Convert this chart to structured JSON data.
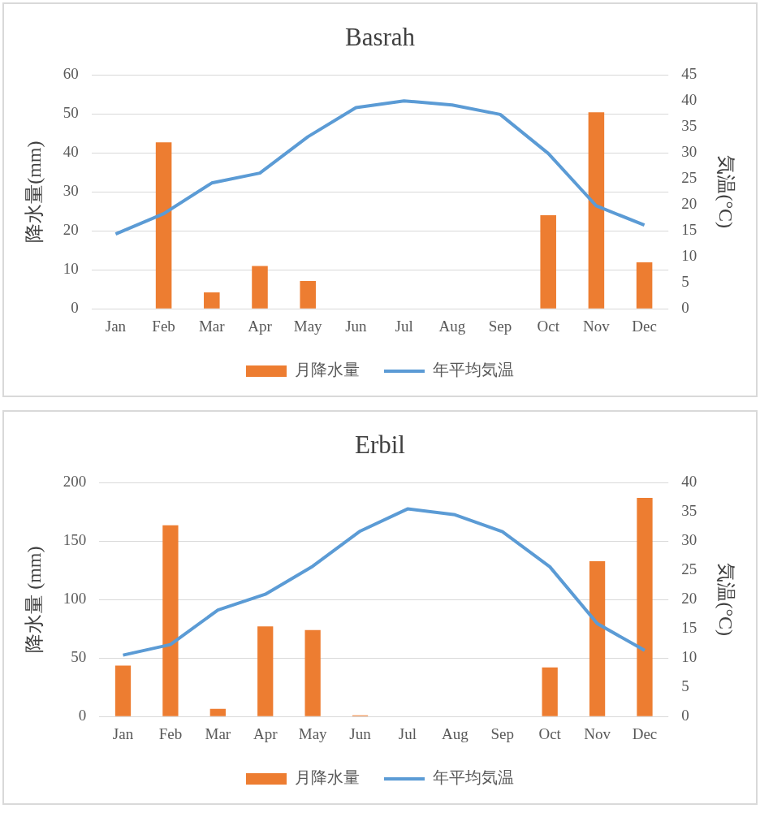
{
  "chart_data": [
    {
      "type": "bar",
      "title": "Basrah",
      "ylabel": "降水量(mm)",
      "y2label": "気温(°C)",
      "categories": [
        "Jan",
        "Feb",
        "Mar",
        "Apr",
        "May",
        "Jun",
        "Jul",
        "Aug",
        "Sep",
        "Oct",
        "Nov",
        "Dec"
      ],
      "series": [
        {
          "name": "月降水量",
          "color": "#ed7d31",
          "values": [
            0,
            42.7,
            4.2,
            11,
            7.1,
            0,
            0,
            0,
            0,
            24,
            50.4,
            11.9
          ]
        },
        {
          "name": "年平均気温",
          "type": "line",
          "axis": "y2",
          "color": "#5b9bd5",
          "values": [
            14.4,
            18.3,
            24.2,
            26.1,
            33.1,
            38.7,
            40.0,
            39.2,
            37.4,
            29.9,
            19.8,
            16.1
          ]
        }
      ],
      "ylim": [
        0,
        60
      ],
      "yticks": [
        0,
        10,
        20,
        30,
        40,
        50,
        60
      ],
      "y2lim": [
        0,
        45
      ],
      "y2ticks": [
        0,
        5,
        10,
        15,
        20,
        25,
        30,
        35,
        40,
        45
      ],
      "grid": "y",
      "legend": "bottom",
      "marker": "none"
    },
    {
      "type": "bar",
      "title": "Erbil",
      "ylabel": "降水量 (mm)",
      "y2label": "気温(°C)",
      "categories": [
        "Jan",
        "Feb",
        "Mar",
        "Apr",
        "May",
        "Jun",
        "Jul",
        "Aug",
        "Sep",
        "Oct",
        "Nov",
        "Dec"
      ],
      "series": [
        {
          "name": "月降水量",
          "color": "#ed7d31",
          "values": [
            43.5,
            163.5,
            6.5,
            77,
            74,
            1,
            0,
            0,
            0,
            42,
            132.7,
            187
          ]
        },
        {
          "name": "年平均気温",
          "type": "line",
          "axis": "y2",
          "color": "#5b9bd5",
          "values": [
            10.5,
            12.3,
            18.2,
            20.9,
            25.7,
            31.7,
            35.5,
            34.5,
            31.6,
            25.6,
            15.9,
            11.3
          ]
        }
      ],
      "ylim": [
        0,
        200
      ],
      "yticks": [
        0,
        50,
        100,
        150,
        200
      ],
      "y2lim": [
        0,
        40
      ],
      "y2ticks": [
        0,
        5,
        10,
        15,
        20,
        25,
        30,
        35,
        40
      ],
      "grid": "y",
      "legend": "bottom",
      "marker": "none"
    }
  ]
}
